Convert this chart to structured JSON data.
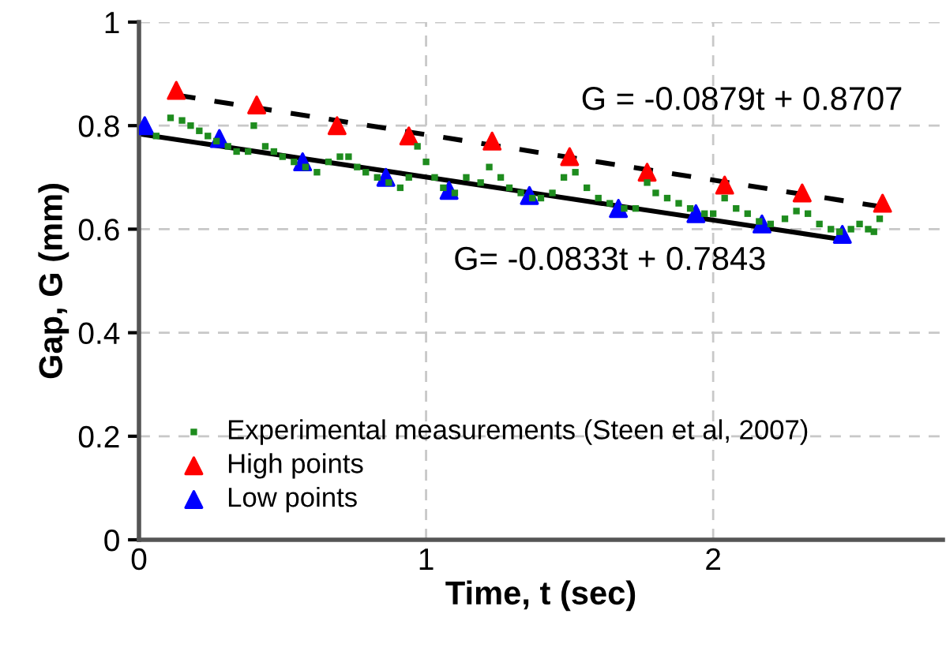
{
  "chart_data": {
    "type": "scatter",
    "xlabel": "Time, t (sec)",
    "ylabel": "Gap, G (mm)",
    "xlim": [
      0,
      2.8
    ],
    "xticks": [
      0,
      1,
      2
    ],
    "ylim": [
      0,
      1
    ],
    "yticks": [
      0,
      0.2,
      0.4,
      0.6,
      0.8,
      1
    ],
    "grid": true,
    "legend": "bottom left",
    "series": [
      {
        "name": "Experimental measurements (Steen et al, 2007)",
        "marker": "square",
        "color": "#1e8c1e",
        "x": [
          0.06,
          0.11,
          0.15,
          0.18,
          0.21,
          0.24,
          0.27,
          0.31,
          0.34,
          0.38,
          0.4,
          0.44,
          0.47,
          0.5,
          0.54,
          0.58,
          0.62,
          0.66,
          0.7,
          0.73,
          0.76,
          0.79,
          0.83,
          0.87,
          0.91,
          0.94,
          0.97,
          1.0,
          1.03,
          1.06,
          1.1,
          1.14,
          1.19,
          1.22,
          1.26,
          1.29,
          1.33,
          1.37,
          1.4,
          1.44,
          1.48,
          1.52,
          1.56,
          1.6,
          1.64,
          1.69,
          1.73,
          1.77,
          1.8,
          1.84,
          1.88,
          1.92,
          1.97,
          2.0,
          2.04,
          2.08,
          2.12,
          2.16,
          2.2,
          2.25,
          2.29,
          2.33,
          2.37,
          2.41,
          2.44,
          2.48,
          2.51,
          2.54,
          2.56,
          2.58
        ],
        "values": [
          0.78,
          0.815,
          0.81,
          0.8,
          0.79,
          0.78,
          0.77,
          0.76,
          0.75,
          0.75,
          0.8,
          0.76,
          0.75,
          0.74,
          0.73,
          0.72,
          0.71,
          0.73,
          0.74,
          0.74,
          0.72,
          0.71,
          0.7,
          0.69,
          0.68,
          0.7,
          0.76,
          0.73,
          0.7,
          0.68,
          0.67,
          0.7,
          0.69,
          0.72,
          0.7,
          0.68,
          0.67,
          0.66,
          0.66,
          0.67,
          0.7,
          0.71,
          0.68,
          0.66,
          0.65,
          0.64,
          0.64,
          0.69,
          0.67,
          0.66,
          0.65,
          0.64,
          0.63,
          0.63,
          0.66,
          0.64,
          0.63,
          0.615,
          0.61,
          0.62,
          0.635,
          0.63,
          0.61,
          0.6,
          0.595,
          0.6,
          0.61,
          0.6,
          0.595,
          0.62
        ]
      },
      {
        "name": "High points",
        "marker": "triangle",
        "color": "#ff0000",
        "x": [
          0.13,
          0.41,
          0.69,
          0.94,
          1.23,
          1.5,
          1.77,
          2.04,
          2.31,
          2.59
        ],
        "values": [
          0.868,
          0.84,
          0.8,
          0.78,
          0.77,
          0.74,
          0.71,
          0.685,
          0.67,
          0.65
        ]
      },
      {
        "name": "Low points",
        "marker": "triangle",
        "color": "#0000ff",
        "x": [
          0.02,
          0.28,
          0.57,
          0.86,
          1.08,
          1.36,
          1.67,
          1.94,
          2.17,
          2.45
        ],
        "values": [
          0.8,
          0.775,
          0.73,
          0.7,
          0.675,
          0.665,
          0.64,
          0.63,
          0.61,
          0.59
        ]
      },
      {
        "type": "line",
        "line_style": "dashed",
        "color": "#000000",
        "x": [
          0.13,
          2.59
        ],
        "values": [
          0.859,
          0.643
        ]
      },
      {
        "type": "line",
        "line_style": "solid",
        "color": "#000000",
        "x": [
          0,
          2.45
        ],
        "values": [
          0.784,
          0.58
        ]
      }
    ],
    "annotations": [
      {
        "text": "G = -0.0879t + 0.8707",
        "x": 2.1,
        "y": 0.686
      },
      {
        "text": "G= -0.0833t + 0.7843",
        "x": 1.64,
        "y": 0.648
      }
    ]
  }
}
